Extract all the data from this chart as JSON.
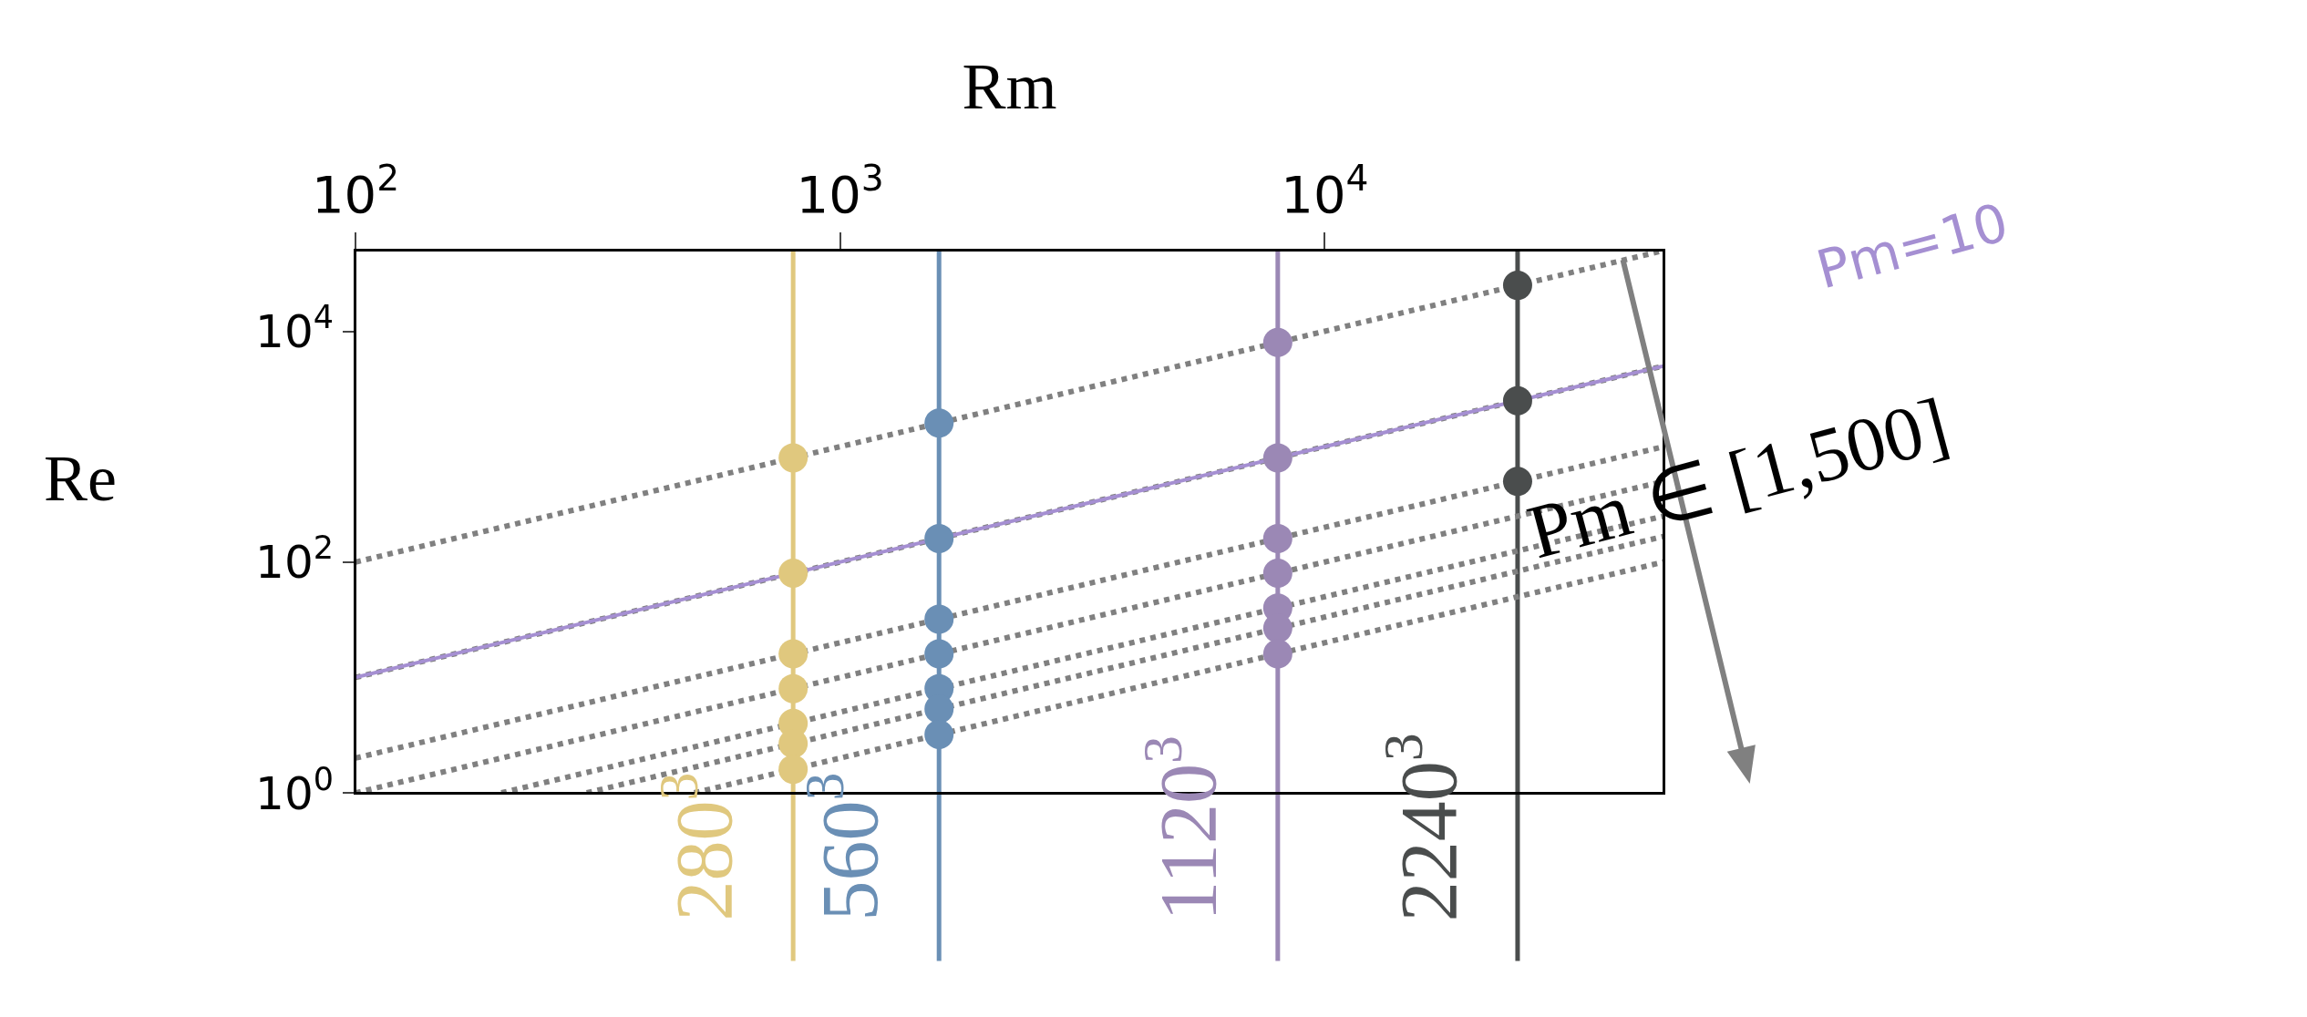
{
  "chart_data": {
    "type": "scatter",
    "xlabel": "Rm",
    "ylabel": "Re",
    "log": "xy",
    "grid": false,
    "legend": false,
    "xlim": [
      100,
      50000
    ],
    "ylim": [
      1,
      50000
    ],
    "xticks": [
      {
        "value": 100,
        "label": "10$^{2}$"
      },
      {
        "value": 1000,
        "label": "10$^{3}$"
      },
      {
        "value": 10000,
        "label": "10$^{4}$"
      }
    ],
    "yticks": [
      {
        "value": 1,
        "label": "10$^{0}$"
      },
      {
        "value": 100,
        "label": "10$^{2}$"
      },
      {
        "value": 10000,
        "label": "10$^{4}$"
      }
    ],
    "series": [
      {
        "type": "line",
        "line_style": "dotted",
        "color": "#808080",
        "x": [
          100,
          50000
        ],
        "values": [
          100,
          50000
        ]
      },
      {
        "type": "line",
        "line_style": "dotted",
        "color": "#808080",
        "x": [
          100,
          50000
        ],
        "values": [
          10,
          5000
        ]
      },
      {
        "type": "line",
        "line_style": "dotted",
        "color": "#808080",
        "x": [
          100,
          50000
        ],
        "values": [
          2,
          1000
        ]
      },
      {
        "type": "line",
        "line_style": "dotted",
        "color": "#808080",
        "x": [
          100,
          50000
        ],
        "values": [
          1,
          500
        ]
      },
      {
        "type": "line",
        "line_style": "dotted",
        "color": "#808080",
        "x": [
          200,
          50000
        ],
        "values": [
          1,
          250
        ]
      },
      {
        "type": "line",
        "line_style": "dotted",
        "color": "#808080",
        "x": [
          300,
          50000
        ],
        "values": [
          1,
          166.7
        ]
      },
      {
        "type": "line",
        "line_style": "dotted",
        "color": "#808080",
        "x": [
          500,
          50000
        ],
        "values": [
          1,
          100
        ]
      },
      {
        "type": "line",
        "line_style": "solid",
        "name": "Pm=10",
        "color": "#a58fd2",
        "x": [
          100,
          50000
        ],
        "values": [
          10,
          5000
        ]
      },
      {
        "type": "scatter",
        "name": "280$^{3}$",
        "marker": "circle",
        "color": "#e0c87e",
        "x": [
          800,
          800,
          800,
          800,
          800,
          800,
          800
        ],
        "values": [
          800,
          80,
          16,
          8,
          4,
          2.67,
          1.6
        ]
      },
      {
        "type": "scatter",
        "name": "560$^{3}$",
        "marker": "circle",
        "color": "#6a8fb5",
        "x": [
          1600,
          1600,
          1600,
          1600,
          1600,
          1600,
          1600
        ],
        "values": [
          1600,
          160,
          32,
          16,
          8,
          5.33,
          3.2
        ]
      },
      {
        "type": "scatter",
        "name": "1120$^{3}$",
        "marker": "circle",
        "color": "#9b88b5",
        "x": [
          8000,
          8000,
          8000,
          8000,
          8000,
          8000,
          8000
        ],
        "values": [
          8000,
          800,
          160,
          80,
          40,
          26.7,
          16
        ]
      },
      {
        "type": "scatter",
        "name": "2240$^{3}$",
        "marker": "circle",
        "color": "#4a4d4d",
        "x": [
          25000,
          25000,
          25000
        ],
        "values": [
          25000,
          2500,
          500
        ]
      }
    ],
    "ref_lines": [
      {
        "axis": "x",
        "value": 800,
        "color": "#e0c87e"
      },
      {
        "axis": "x",
        "value": 1600,
        "color": "#6a8fb5"
      },
      {
        "axis": "x",
        "value": 8000,
        "color": "#9b88b5"
      },
      {
        "axis": "x",
        "value": 25000,
        "color": "#4a4d4d"
      }
    ],
    "annotations": [
      "Pm ∈ [1,500]"
    ]
  }
}
